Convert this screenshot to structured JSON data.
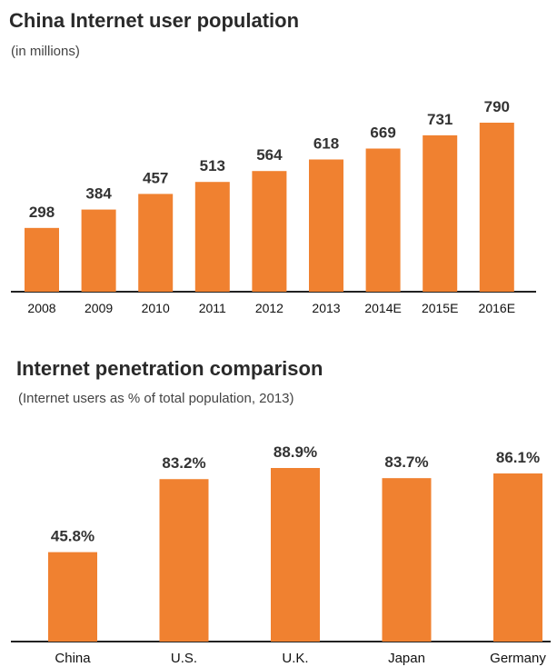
{
  "chart_data": [
    {
      "type": "bar",
      "title": "China Internet user population",
      "subtitle": "(in millions)",
      "categories": [
        "2008",
        "2009",
        "2010",
        "2011",
        "2012",
        "2013",
        "2014E",
        "2015E",
        "2016E"
      ],
      "values": [
        298,
        384,
        457,
        513,
        564,
        618,
        669,
        731,
        790
      ],
      "value_labels": [
        "298",
        "384",
        "457",
        "513",
        "564",
        "618",
        "669",
        "731",
        "790"
      ],
      "ylim": [
        0,
        790
      ],
      "grid": false,
      "color": "#f08130"
    },
    {
      "type": "bar",
      "title": "Internet penetration comparison",
      "subtitle": "(Internet users as % of total population, 2013)",
      "categories": [
        "China",
        "U.S.",
        "U.K.",
        "Japan",
        "Germany"
      ],
      "values": [
        45.8,
        83.2,
        88.9,
        83.7,
        86.1
      ],
      "value_labels": [
        "45.8%",
        "83.2%",
        "88.9%",
        "83.7%",
        "86.1%"
      ],
      "ylim": [
        0,
        88.9
      ],
      "grid": false,
      "color": "#f08130"
    }
  ]
}
